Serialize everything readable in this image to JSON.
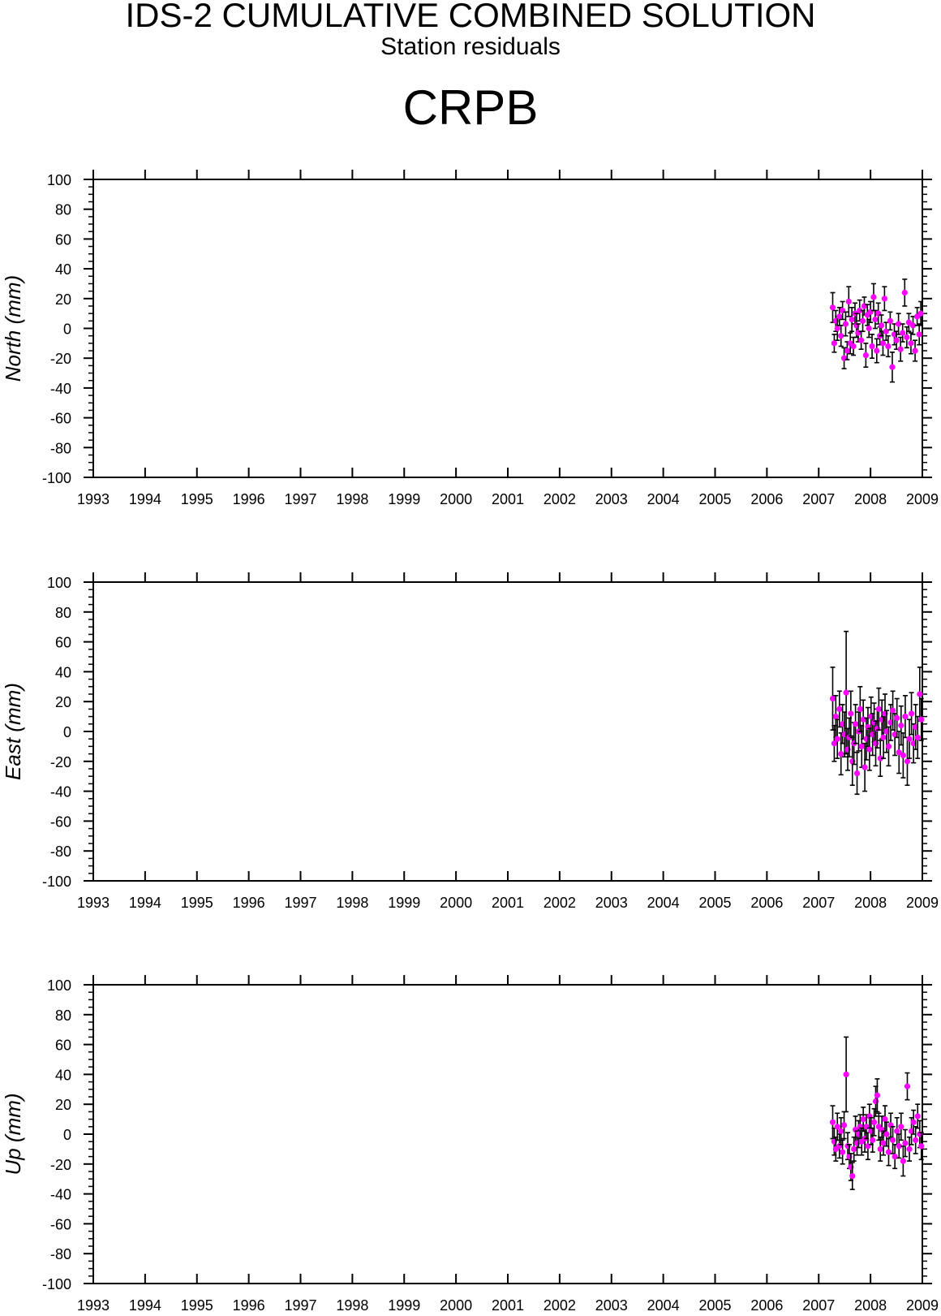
{
  "header": {
    "title": "IDS-2 CUMULATIVE COMBINED SOLUTION",
    "subtitle": "Station residuals",
    "station": "CRPB"
  },
  "colors": {
    "point": "#ff00ff",
    "errorbar": "#000000",
    "axes": "#000000"
  },
  "chart_data": [
    {
      "type": "scatter",
      "ylabel": "North (mm)",
      "xlim": [
        1993,
        2009
      ],
      "ylim": [
        -100,
        100
      ],
      "x_ticks": [
        "1993",
        "1994",
        "1995",
        "1996",
        "1997",
        "1998",
        "1999",
        "2000",
        "2001",
        "2002",
        "2003",
        "2004",
        "2005",
        "2006",
        "2007",
        "2008",
        "2009"
      ],
      "y_ticks": [
        "100",
        "80",
        "60",
        "40",
        "20",
        "0",
        "-20",
        "-40",
        "-60",
        "-80",
        "-100"
      ],
      "grid": false,
      "error_bars": true,
      "points": [
        {
          "x": 2007.27,
          "y": 14,
          "err": 10
        },
        {
          "x": 2007.3,
          "y": -10,
          "err": 6
        },
        {
          "x": 2007.33,
          "y": 5,
          "err": 7
        },
        {
          "x": 2007.36,
          "y": 0,
          "err": 8
        },
        {
          "x": 2007.4,
          "y": 8,
          "err": 6
        },
        {
          "x": 2007.43,
          "y": -5,
          "err": 7
        },
        {
          "x": 2007.46,
          "y": 12,
          "err": 6
        },
        {
          "x": 2007.49,
          "y": -20,
          "err": 7
        },
        {
          "x": 2007.52,
          "y": 3,
          "err": 8
        },
        {
          "x": 2007.55,
          "y": -15,
          "err": 6
        },
        {
          "x": 2007.58,
          "y": 18,
          "err": 10
        },
        {
          "x": 2007.61,
          "y": -10,
          "err": 7
        },
        {
          "x": 2007.64,
          "y": 6,
          "err": 8
        },
        {
          "x": 2007.67,
          "y": -12,
          "err": 6
        },
        {
          "x": 2007.7,
          "y": 10,
          "err": 7
        },
        {
          "x": 2007.73,
          "y": 2,
          "err": 8
        },
        {
          "x": 2007.76,
          "y": -3,
          "err": 6
        },
        {
          "x": 2007.79,
          "y": 12,
          "err": 7
        },
        {
          "x": 2007.82,
          "y": -8,
          "err": 6
        },
        {
          "x": 2007.85,
          "y": 5,
          "err": 7
        },
        {
          "x": 2007.88,
          "y": 15,
          "err": 6
        },
        {
          "x": 2007.91,
          "y": -18,
          "err": 8
        },
        {
          "x": 2007.94,
          "y": 9,
          "err": 7
        },
        {
          "x": 2007.97,
          "y": 0,
          "err": 6
        },
        {
          "x": 2008.0,
          "y": 11,
          "err": 7
        },
        {
          "x": 2008.03,
          "y": -12,
          "err": 8
        },
        {
          "x": 2008.06,
          "y": 21,
          "err": 9
        },
        {
          "x": 2008.09,
          "y": 6,
          "err": 6
        },
        {
          "x": 2008.12,
          "y": -15,
          "err": 8
        },
        {
          "x": 2008.15,
          "y": 10,
          "err": 7
        },
        {
          "x": 2008.18,
          "y": -5,
          "err": 6
        },
        {
          "x": 2008.21,
          "y": 2,
          "err": 7
        },
        {
          "x": 2008.24,
          "y": -10,
          "err": 8
        },
        {
          "x": 2008.27,
          "y": 20,
          "err": 8
        },
        {
          "x": 2008.3,
          "y": -2,
          "err": 6
        },
        {
          "x": 2008.34,
          "y": -12,
          "err": 7
        },
        {
          "x": 2008.38,
          "y": 5,
          "err": 6
        },
        {
          "x": 2008.42,
          "y": -26,
          "err": 10
        },
        {
          "x": 2008.46,
          "y": -4,
          "err": 7
        },
        {
          "x": 2008.5,
          "y": -8,
          "err": 6
        },
        {
          "x": 2008.54,
          "y": 3,
          "err": 7
        },
        {
          "x": 2008.58,
          "y": -14,
          "err": 8
        },
        {
          "x": 2008.62,
          "y": -3,
          "err": 6
        },
        {
          "x": 2008.66,
          "y": 24,
          "err": 9
        },
        {
          "x": 2008.7,
          "y": -6,
          "err": 7
        },
        {
          "x": 2008.74,
          "y": 4,
          "err": 6
        },
        {
          "x": 2008.78,
          "y": -10,
          "err": 7
        },
        {
          "x": 2008.82,
          "y": 2,
          "err": 6
        },
        {
          "x": 2008.86,
          "y": -15,
          "err": 7
        },
        {
          "x": 2008.9,
          "y": 8,
          "err": 6
        },
        {
          "x": 2008.94,
          "y": -4,
          "err": 7
        },
        {
          "x": 2008.97,
          "y": 10,
          "err": 8
        }
      ]
    },
    {
      "type": "scatter",
      "ylabel": "East (mm)",
      "xlim": [
        1993,
        2009
      ],
      "ylim": [
        -100,
        100
      ],
      "x_ticks": [
        "1993",
        "1994",
        "1995",
        "1996",
        "1997",
        "1998",
        "1999",
        "2000",
        "2001",
        "2002",
        "2003",
        "2004",
        "2005",
        "2006",
        "2007",
        "2008",
        "2009"
      ],
      "y_ticks": [
        "100",
        "80",
        "60",
        "40",
        "20",
        "0",
        "-20",
        "-40",
        "-60",
        "-80",
        "-100"
      ],
      "grid": false,
      "error_bars": true,
      "points": [
        {
          "x": 2007.27,
          "y": 22,
          "err": 21
        },
        {
          "x": 2007.3,
          "y": -8,
          "err": 12
        },
        {
          "x": 2007.33,
          "y": 10,
          "err": 14
        },
        {
          "x": 2007.36,
          "y": -5,
          "err": 13
        },
        {
          "x": 2007.4,
          "y": 15,
          "err": 12
        },
        {
          "x": 2007.43,
          "y": -15,
          "err": 14
        },
        {
          "x": 2007.46,
          "y": 5,
          "err": 13
        },
        {
          "x": 2007.5,
          "y": -2,
          "err": 15
        },
        {
          "x": 2007.53,
          "y": 26,
          "err": 41
        },
        {
          "x": 2007.56,
          "y": -12,
          "err": 14
        },
        {
          "x": 2007.59,
          "y": -4,
          "err": 13
        },
        {
          "x": 2007.62,
          "y": 12,
          "err": 15
        },
        {
          "x": 2007.65,
          "y": -20,
          "err": 16
        },
        {
          "x": 2007.68,
          "y": -8,
          "err": 14
        },
        {
          "x": 2007.71,
          "y": 5,
          "err": 13
        },
        {
          "x": 2007.74,
          "y": -28,
          "err": 14
        },
        {
          "x": 2007.77,
          "y": 0,
          "err": 13
        },
        {
          "x": 2007.8,
          "y": 15,
          "err": 15
        },
        {
          "x": 2007.83,
          "y": -10,
          "err": 14
        },
        {
          "x": 2007.86,
          "y": 8,
          "err": 13
        },
        {
          "x": 2007.89,
          "y": -24,
          "err": 16
        },
        {
          "x": 2007.92,
          "y": -5,
          "err": 14
        },
        {
          "x": 2007.95,
          "y": 3,
          "err": 13
        },
        {
          "x": 2007.98,
          "y": -12,
          "err": 14
        },
        {
          "x": 2008.01,
          "y": 10,
          "err": 13
        },
        {
          "x": 2008.04,
          "y": -2,
          "err": 14
        },
        {
          "x": 2008.07,
          "y": 6,
          "err": 13
        },
        {
          "x": 2008.1,
          "y": -8,
          "err": 15
        },
        {
          "x": 2008.13,
          "y": 2,
          "err": 13
        },
        {
          "x": 2008.16,
          "y": 15,
          "err": 14
        },
        {
          "x": 2008.19,
          "y": -18,
          "err": 12
        },
        {
          "x": 2008.22,
          "y": 8,
          "err": 13
        },
        {
          "x": 2008.25,
          "y": -4,
          "err": 14
        },
        {
          "x": 2008.28,
          "y": 12,
          "err": 13
        },
        {
          "x": 2008.31,
          "y": 0,
          "err": 14
        },
        {
          "x": 2008.35,
          "y": -10,
          "err": 13
        },
        {
          "x": 2008.39,
          "y": 6,
          "err": 12
        },
        {
          "x": 2008.43,
          "y": 14,
          "err": 13
        },
        {
          "x": 2008.47,
          "y": -2,
          "err": 14
        },
        {
          "x": 2008.51,
          "y": 9,
          "err": 13
        },
        {
          "x": 2008.55,
          "y": -14,
          "err": 14
        },
        {
          "x": 2008.59,
          "y": 4,
          "err": 13
        },
        {
          "x": 2008.63,
          "y": -16,
          "err": 15
        },
        {
          "x": 2008.67,
          "y": 10,
          "err": 14
        },
        {
          "x": 2008.71,
          "y": -20,
          "err": 16
        },
        {
          "x": 2008.75,
          "y": -5,
          "err": 13
        },
        {
          "x": 2008.79,
          "y": 12,
          "err": 14
        },
        {
          "x": 2008.83,
          "y": -8,
          "err": 13
        },
        {
          "x": 2008.87,
          "y": 3,
          "err": 15
        },
        {
          "x": 2008.91,
          "y": -4,
          "err": 14
        },
        {
          "x": 2008.95,
          "y": 25,
          "err": 18
        },
        {
          "x": 2008.98,
          "y": 8,
          "err": 14
        }
      ]
    },
    {
      "type": "scatter",
      "ylabel": "Up (mm)",
      "xlim": [
        1993,
        2009
      ],
      "ylim": [
        -100,
        100
      ],
      "x_ticks": [
        "1993",
        "1994",
        "1995",
        "1996",
        "1997",
        "1998",
        "1999",
        "2000",
        "2001",
        "2002",
        "2003",
        "2004",
        "2005",
        "2006",
        "2007",
        "2008",
        "2009"
      ],
      "y_ticks": [
        "100",
        "80",
        "60",
        "40",
        "20",
        "0",
        "-20",
        "-40",
        "-60",
        "-80",
        "-100"
      ],
      "grid": false,
      "error_bars": true,
      "points": [
        {
          "x": 2007.27,
          "y": 8,
          "err": 11
        },
        {
          "x": 2007.3,
          "y": -5,
          "err": 9
        },
        {
          "x": 2007.33,
          "y": -10,
          "err": 8
        },
        {
          "x": 2007.36,
          "y": 5,
          "err": 9
        },
        {
          "x": 2007.4,
          "y": -8,
          "err": 8
        },
        {
          "x": 2007.43,
          "y": 2,
          "err": 9
        },
        {
          "x": 2007.46,
          "y": -12,
          "err": 8
        },
        {
          "x": 2007.49,
          "y": 6,
          "err": 9
        },
        {
          "x": 2007.53,
          "y": 40,
          "err": 25
        },
        {
          "x": 2007.56,
          "y": -8,
          "err": 9
        },
        {
          "x": 2007.59,
          "y": -15,
          "err": 8
        },
        {
          "x": 2007.62,
          "y": -22,
          "err": 9
        },
        {
          "x": 2007.65,
          "y": -28,
          "err": 9
        },
        {
          "x": 2007.68,
          "y": -10,
          "err": 8
        },
        {
          "x": 2007.71,
          "y": 3,
          "err": 9
        },
        {
          "x": 2007.74,
          "y": -6,
          "err": 8
        },
        {
          "x": 2007.77,
          "y": 0,
          "err": 9
        },
        {
          "x": 2007.8,
          "y": 5,
          "err": 8
        },
        {
          "x": 2007.83,
          "y": -5,
          "err": 9
        },
        {
          "x": 2007.86,
          "y": 10,
          "err": 8
        },
        {
          "x": 2007.89,
          "y": -3,
          "err": 9
        },
        {
          "x": 2007.92,
          "y": 5,
          "err": 8
        },
        {
          "x": 2007.95,
          "y": -8,
          "err": 9
        },
        {
          "x": 2007.98,
          "y": 12,
          "err": 8
        },
        {
          "x": 2008.01,
          "y": 2,
          "err": 9
        },
        {
          "x": 2008.04,
          "y": -4,
          "err": 8
        },
        {
          "x": 2008.07,
          "y": 8,
          "err": 9
        },
        {
          "x": 2008.1,
          "y": 22,
          "err": 10
        },
        {
          "x": 2008.13,
          "y": 26,
          "err": 11
        },
        {
          "x": 2008.16,
          "y": 5,
          "err": 9
        },
        {
          "x": 2008.19,
          "y": -10,
          "err": 8
        },
        {
          "x": 2008.22,
          "y": 3,
          "err": 9
        },
        {
          "x": 2008.25,
          "y": -6,
          "err": 8
        },
        {
          "x": 2008.28,
          "y": 10,
          "err": 9
        },
        {
          "x": 2008.31,
          "y": 0,
          "err": 8
        },
        {
          "x": 2008.35,
          "y": -12,
          "err": 9
        },
        {
          "x": 2008.39,
          "y": 6,
          "err": 8
        },
        {
          "x": 2008.43,
          "y": -4,
          "err": 9
        },
        {
          "x": 2008.47,
          "y": -15,
          "err": 8
        },
        {
          "x": 2008.51,
          "y": 2,
          "err": 9
        },
        {
          "x": 2008.55,
          "y": -8,
          "err": 8
        },
        {
          "x": 2008.59,
          "y": 5,
          "err": 9
        },
        {
          "x": 2008.63,
          "y": -18,
          "err": 10
        },
        {
          "x": 2008.67,
          "y": -6,
          "err": 9
        },
        {
          "x": 2008.71,
          "y": 32,
          "err": 9
        },
        {
          "x": 2008.75,
          "y": -10,
          "err": 8
        },
        {
          "x": 2008.79,
          "y": 2,
          "err": 9
        },
        {
          "x": 2008.83,
          "y": 8,
          "err": 8
        },
        {
          "x": 2008.87,
          "y": -4,
          "err": 9
        },
        {
          "x": 2008.91,
          "y": 12,
          "err": 8
        },
        {
          "x": 2008.95,
          "y": 0,
          "err": 9
        },
        {
          "x": 2008.98,
          "y": -8,
          "err": 9
        }
      ]
    }
  ]
}
